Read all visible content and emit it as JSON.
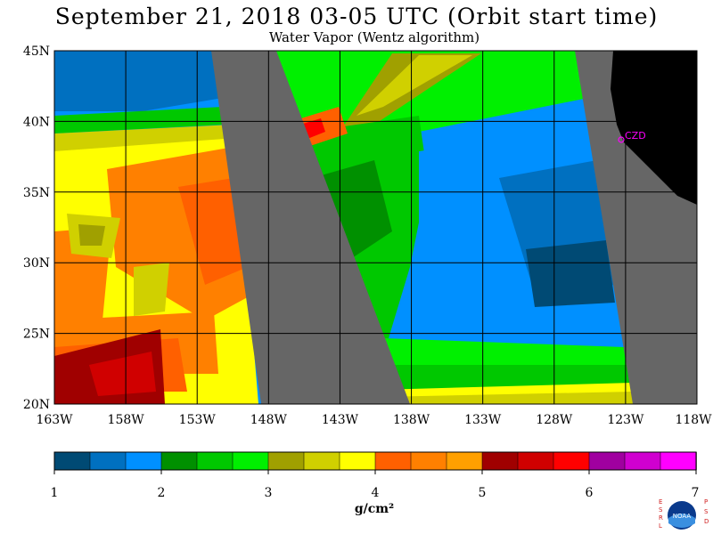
{
  "header": {
    "title": "September 21, 2018  03-05 UTC  (Orbit start time)",
    "subtitle": "Water Vapor (Wentz algorithm)"
  },
  "map": {
    "projection": "equirectangular",
    "lat_range": [
      20,
      45
    ],
    "lon_range": [
      -163,
      -118
    ],
    "lat_labels": [
      "45N",
      "40N",
      "35N",
      "30N",
      "25N",
      "20N"
    ],
    "lon_labels": [
      "163W",
      "158W",
      "153W",
      "148W",
      "143W",
      "138W",
      "133W",
      "128W",
      "123W",
      "118W"
    ],
    "station_label": "CZD",
    "no_data_color": "#666666",
    "land_color": "#000000",
    "grid_color": "#000000"
  },
  "colorbar": {
    "units": "g/cm²",
    "tick_labels": [
      "1",
      "2",
      "3",
      "4",
      "5",
      "6",
      "7"
    ],
    "colors": [
      "#004a74",
      "#0070c0",
      "#0090ff",
      "#009000",
      "#00c800",
      "#00f000",
      "#a0a000",
      "#d0d000",
      "#ffff00",
      "#ff6000",
      "#ff8000",
      "#ffa000",
      "#a00000",
      "#d00000",
      "#ff0000",
      "#a000a0",
      "#d000d0",
      "#ff00ff"
    ]
  },
  "logo": {
    "left_text": "ESRL",
    "right_text": "PSD",
    "center_text": "NOAA"
  }
}
